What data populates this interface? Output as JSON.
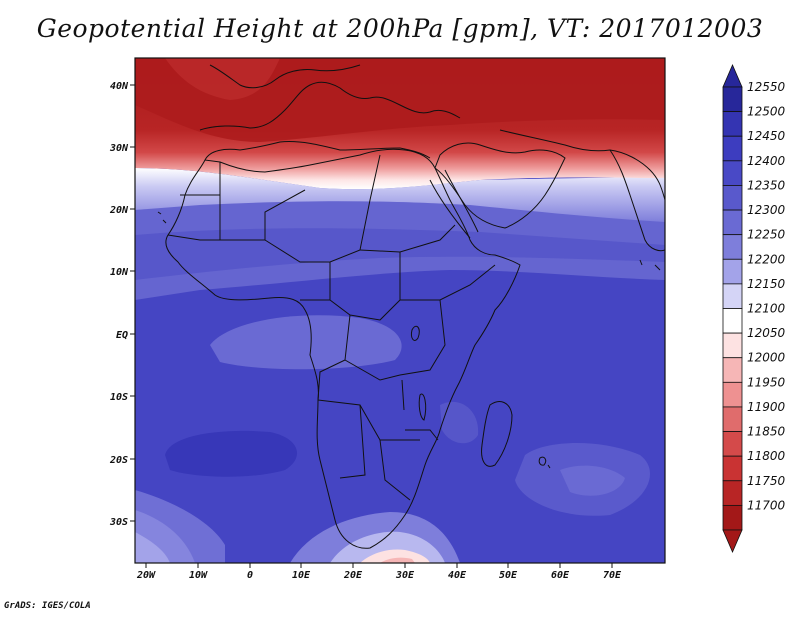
{
  "title": "Geopotential Height at 200hPa [gpm], VT: 2017012003",
  "credit": "GrADS: IGES/COLA",
  "lat_labels": [
    "40N",
    "30N",
    "20N",
    "10N",
    "EQ",
    "10S",
    "20S",
    "30S"
  ],
  "lon_labels": [
    "20W",
    "10W",
    "0",
    "10E",
    "20E",
    "30E",
    "40E",
    "50E",
    "60E",
    "70E"
  ],
  "colorbar": {
    "levels": [
      12550,
      12500,
      12450,
      12400,
      12350,
      12300,
      12250,
      12200,
      12150,
      12100,
      12050,
      12000,
      11950,
      11900,
      11850,
      11800,
      11750,
      11700
    ],
    "colors_top_to_bottom": [
      "#27279a",
      "#3434b2",
      "#3d3dbf",
      "#4949c6",
      "#5959cc",
      "#6a6ad3",
      "#7e7edb",
      "#a3a3e9",
      "#d4d4f6",
      "#ffffff",
      "#fde2e2",
      "#f6b6b6",
      "#ee9191",
      "#e06c6c",
      "#d44a4a",
      "#c93333",
      "#b82525",
      "#a31818"
    ]
  }
}
